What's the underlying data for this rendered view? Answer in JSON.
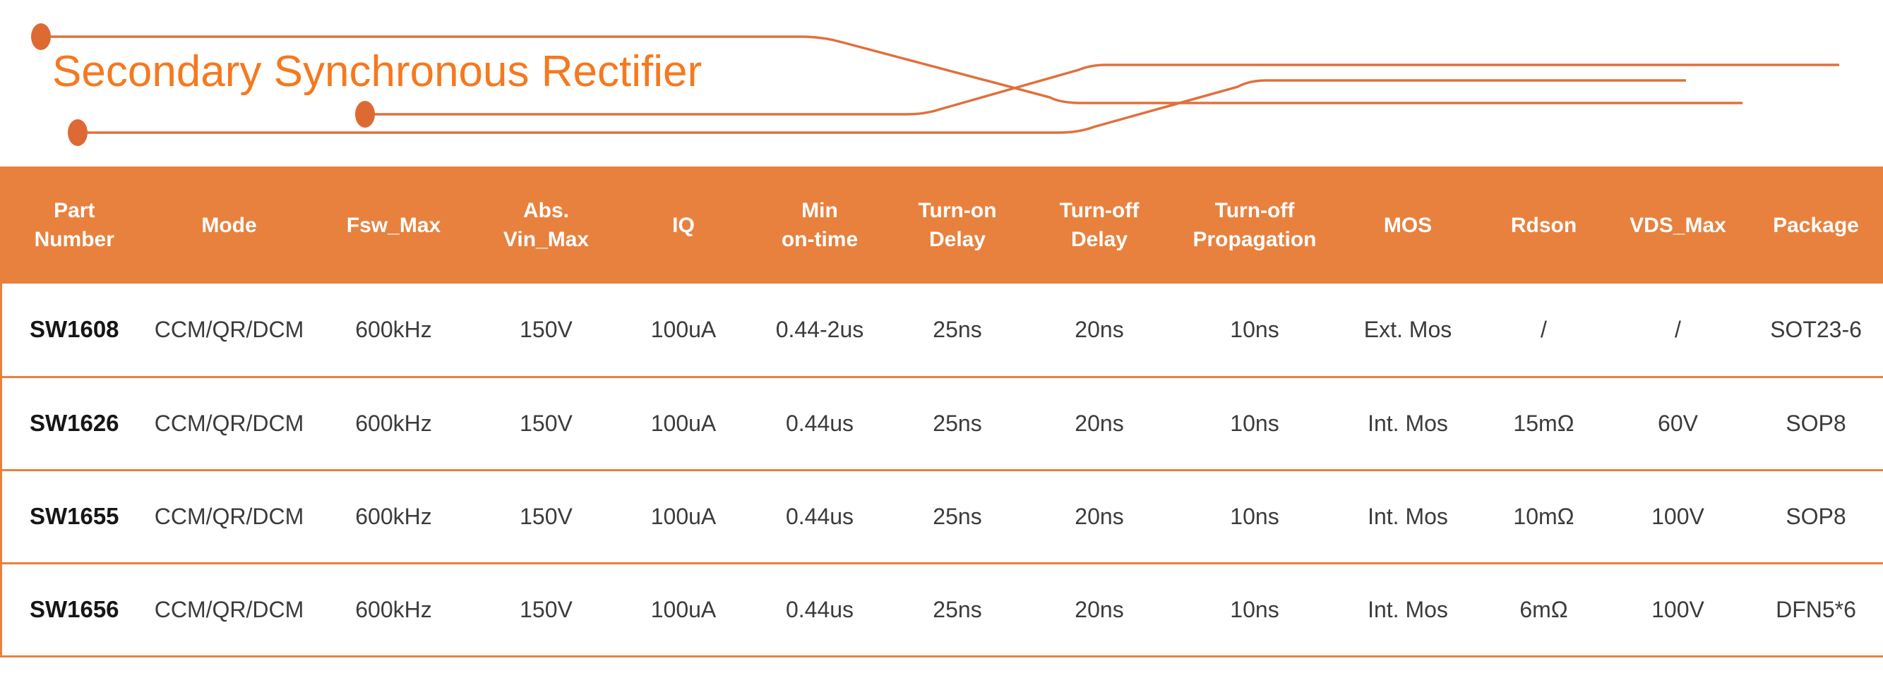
{
  "title": "Secondary Synchronous Rectifier",
  "colors": {
    "title_text": "#F5791F",
    "line": "#E0703C",
    "dot": "#DD6A33",
    "header_bg": "#E8813E",
    "header_text": "#FFFFFF",
    "separator": "#E8813E",
    "body_text": "#3B3B3B",
    "part_number_text": "#161616",
    "background": "#FFFFFF"
  },
  "decoration": {
    "description": "three orange circuit-trace lines with solder-dot terminals"
  },
  "table": {
    "type": "table",
    "columns": [
      {
        "id": "part-number",
        "label": "Part\nNumber"
      },
      {
        "id": "mode",
        "label": "Mode"
      },
      {
        "id": "fsw-max",
        "label": "Fsw_Max"
      },
      {
        "id": "abs-vin-max",
        "label": "Abs.\nVin_Max"
      },
      {
        "id": "iq",
        "label": "IQ"
      },
      {
        "id": "min-on-time",
        "label": "Min\non-time"
      },
      {
        "id": "turn-on-delay",
        "label": "Turn-on\nDelay"
      },
      {
        "id": "turn-off-delay",
        "label": "Turn-off\nDelay"
      },
      {
        "id": "turn-off-propagation",
        "label": "Turn-off\nPropagation"
      },
      {
        "id": "mos",
        "label": "MOS"
      },
      {
        "id": "rdson",
        "label": "Rdson"
      },
      {
        "id": "vds-max",
        "label": "VDS_Max"
      },
      {
        "id": "package",
        "label": "Package"
      }
    ],
    "rows": [
      {
        "part_number": "SW1608",
        "values": [
          "CCM/QR/DCM",
          "600kHz",
          "150V",
          "100uA",
          "0.44-2us",
          "25ns",
          "20ns",
          "10ns",
          "Ext. Mos",
          "/",
          "/",
          "SOT23-6"
        ]
      },
      {
        "part_number": "SW1626",
        "values": [
          "CCM/QR/DCM",
          "600kHz",
          "150V",
          "100uA",
          "0.44us",
          "25ns",
          "20ns",
          "10ns",
          "Int. Mos",
          "15mΩ",
          "60V",
          "SOP8"
        ]
      },
      {
        "part_number": "SW1655",
        "values": [
          "CCM/QR/DCM",
          "600kHz",
          "150V",
          "100uA",
          "0.44us",
          "25ns",
          "20ns",
          "10ns",
          "Int. Mos",
          "10mΩ",
          "100V",
          "SOP8"
        ]
      },
      {
        "part_number": "SW1656",
        "values": [
          "CCM/QR/DCM",
          "600kHz",
          "150V",
          "100uA",
          "0.44us",
          "25ns",
          "20ns",
          "10ns",
          "Int. Mos",
          "6mΩ",
          "100V",
          "DFN5*6"
        ]
      }
    ]
  }
}
